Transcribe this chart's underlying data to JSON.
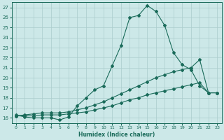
{
  "xlabel": "Humidex (Indice chaleur)",
  "ylabel": "",
  "bg_color": "#cce8e8",
  "grid_color": "#aacccc",
  "line_color": "#1a6b5a",
  "xlim": [
    -0.5,
    23.5
  ],
  "ylim": [
    15.5,
    27.5
  ],
  "xticks": [
    0,
    1,
    2,
    3,
    4,
    5,
    6,
    7,
    8,
    9,
    10,
    11,
    12,
    13,
    14,
    15,
    16,
    17,
    18,
    19,
    20,
    21,
    22,
    23
  ],
  "yticks": [
    16,
    17,
    18,
    19,
    20,
    21,
    22,
    23,
    24,
    25,
    26,
    27
  ],
  "hours": [
    0,
    1,
    2,
    3,
    4,
    5,
    6,
    7,
    8,
    9,
    10,
    11,
    12,
    13,
    14,
    15,
    16,
    17,
    18,
    19,
    20,
    21,
    22,
    23
  ],
  "line1": [
    16.3,
    16.1,
    16.0,
    16.0,
    16.0,
    15.8,
    16.1,
    17.2,
    18.0,
    18.8,
    19.2,
    21.2,
    23.2,
    26.0,
    26.2,
    27.2,
    26.6,
    25.2,
    22.5,
    21.3,
    20.8,
    19.2,
    18.5,
    18.5
  ],
  "line2": [
    16.2,
    16.2,
    16.2,
    16.3,
    16.3,
    16.3,
    16.4,
    16.5,
    16.6,
    16.8,
    17.0,
    17.2,
    17.5,
    17.8,
    18.0,
    18.3,
    18.5,
    18.7,
    18.9,
    19.1,
    19.3,
    19.5,
    18.5,
    18.5
  ],
  "line3": [
    16.2,
    16.3,
    16.4,
    16.5,
    16.5,
    16.5,
    16.6,
    16.8,
    17.0,
    17.3,
    17.6,
    18.0,
    18.4,
    18.8,
    19.2,
    19.6,
    20.0,
    20.3,
    20.6,
    20.8,
    21.0,
    21.8,
    18.5,
    18.5
  ]
}
